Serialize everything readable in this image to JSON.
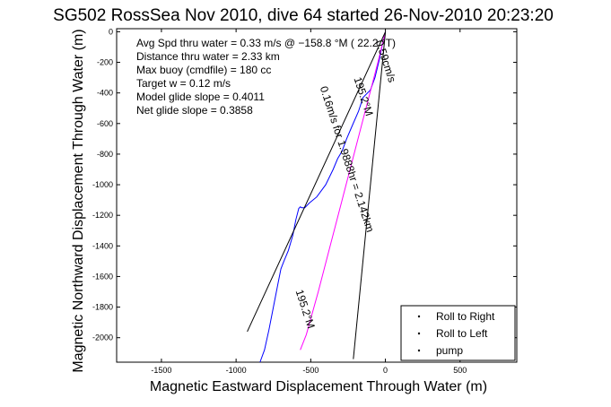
{
  "chart_data": {
    "type": "line",
    "title": "SG502 RossSea Nov 2010, dive 64 started 26-Nov-2010 20:23:20",
    "xlabel": "Magnetic Eastward Displacement Through Water (m)",
    "ylabel": "Magnetic Northward Displacement Through Water (m)",
    "xlim": [
      -1800,
      880
    ],
    "ylim": [
      -2160,
      20
    ],
    "xticks": [
      -1500,
      -1000,
      -500,
      0,
      500
    ],
    "yticks": [
      0,
      -200,
      -400,
      -600,
      -800,
      -1000,
      -1200,
      -1400,
      -1600,
      -1800,
      -2000
    ],
    "grid": false,
    "legend_position": "bottom-right",
    "legend": [
      {
        "label": "Roll to Right",
        "color": "#00cc00"
      },
      {
        "label": "Roll to Left",
        "color": "#ff0000"
      },
      {
        "label": "pump",
        "color": "#000000"
      }
    ],
    "annotations": [
      "Avg Spd thru water =  0.33 m/s @ −158.8 °M ( 22.2 °T)",
      "Distance thru water = 2.33 km",
      "Max buoy (cmdfile) = 180 cc",
      "Target w = 0.12 m/s",
      "Model glide slope = 0.4011",
      "Net glide slope = 0.3858"
    ],
    "rotated_labels": [
      {
        "text": "195.2°M",
        "x": -170,
        "y": -430,
        "angle": 72
      },
      {
        "text": "0.59cm/s",
        "x": -20,
        "y": -200,
        "angle": 72
      },
      {
        "text": "0.16m/s for 1.9888hr = 2.142km",
        "x": -280,
        "y": -840,
        "angle": 72
      },
      {
        "text": "195.2°M",
        "x": -560,
        "y": -1820,
        "angle": 72
      }
    ],
    "series": [
      {
        "name": "",
        "color": "#0000ff",
        "x": [
          0,
          -20,
          -40,
          -70,
          -100,
          -150,
          -180,
          -220,
          -260,
          -290,
          -320,
          -350,
          -400,
          -460,
          -510,
          -540,
          -560,
          -570,
          -580,
          -600,
          -620,
          -650,
          -680,
          -700,
          -720,
          -750,
          -780,
          -810,
          -840
        ],
        "y": [
          0,
          -80,
          -180,
          -300,
          -380,
          -430,
          -520,
          -610,
          -700,
          -780,
          -830,
          -900,
          -1000,
          -1080,
          -1120,
          -1150,
          -1150,
          -1145,
          -1155,
          -1230,
          -1330,
          -1430,
          -1500,
          -1550,
          -1650,
          -1800,
          -1950,
          -2080,
          -2160
        ]
      },
      {
        "name": "",
        "color": "#ff00ff",
        "x": [
          0,
          -50,
          -130,
          -210,
          -290,
          -370,
          -450,
          -530,
          -570
        ],
        "y": [
          0,
          -200,
          -500,
          -800,
          -1100,
          -1400,
          -1700,
          -1980,
          -2080
        ]
      },
      {
        "name": "",
        "color": "#000000",
        "x": [
          0,
          -925
        ],
        "y": [
          0,
          -1960
        ]
      },
      {
        "name": "",
        "color": "#000000",
        "x": [
          0,
          -215
        ],
        "y": [
          0,
          -2140
        ]
      }
    ]
  }
}
